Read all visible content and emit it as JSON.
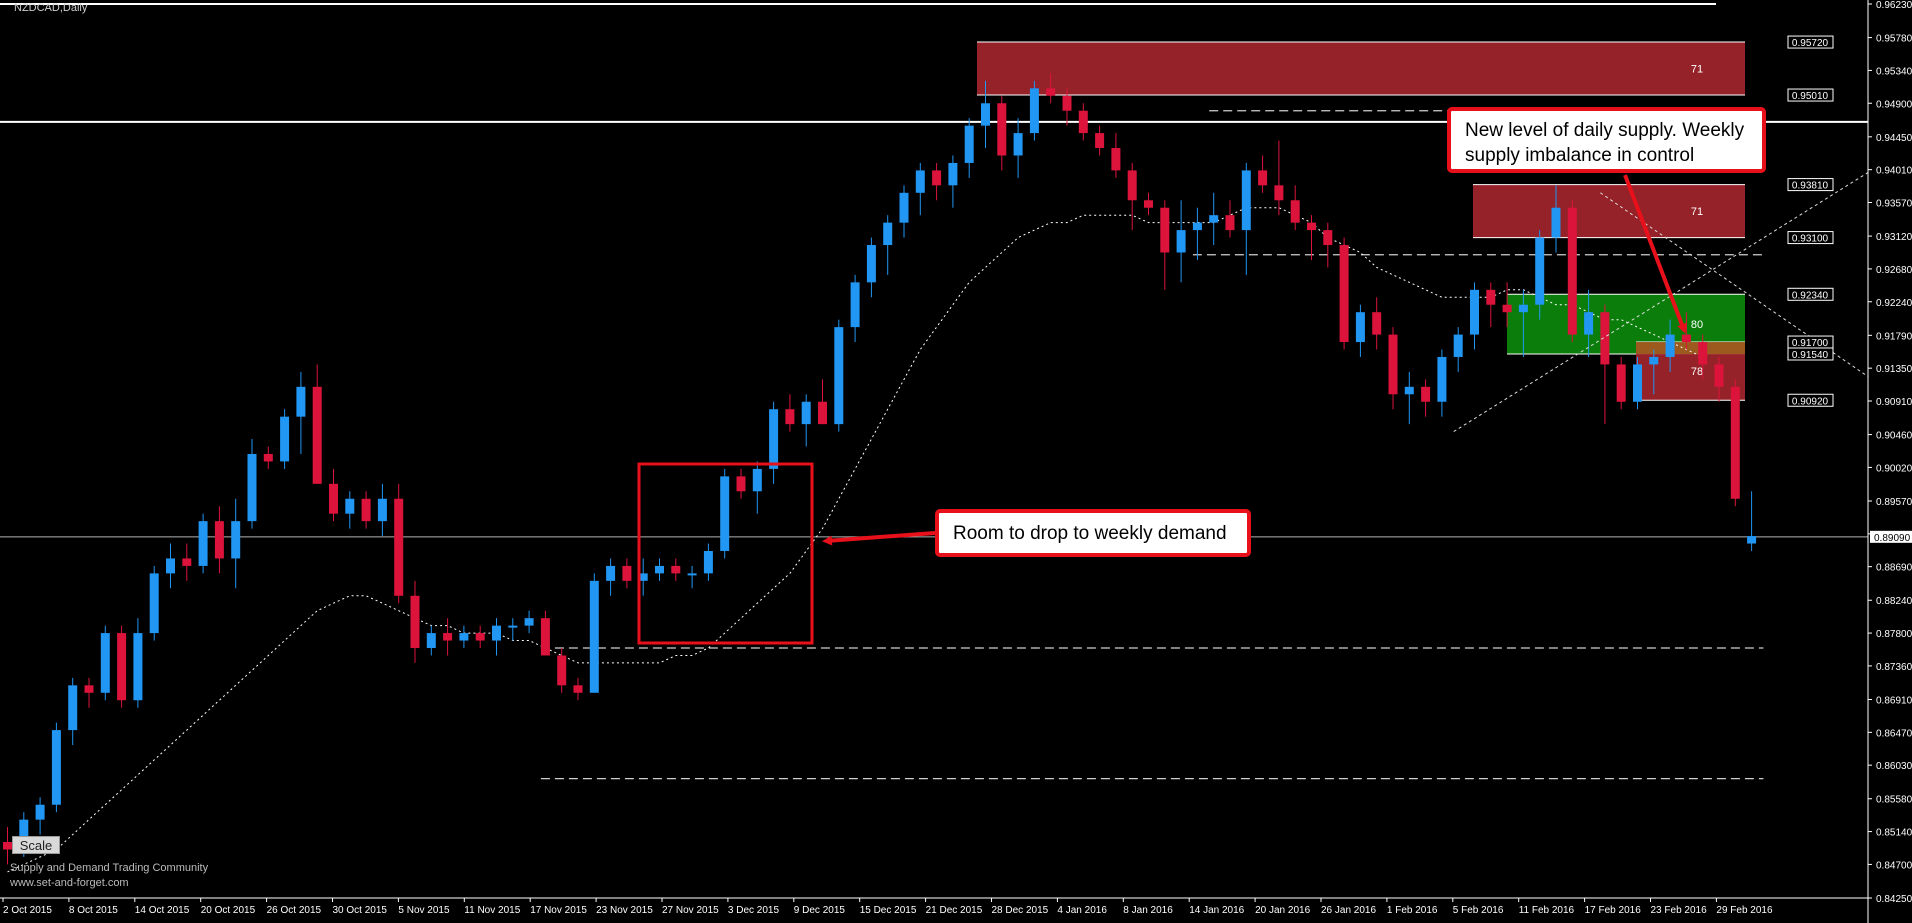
{
  "chart_title": "NZDCAD,Daily",
  "chart_data": {
    "type": "candlestick",
    "symbol": "NZDCAD",
    "timeframe": "Daily",
    "ylim": [
      0.8425,
      0.9623
    ],
    "price_ticks": [
      "0.96230",
      "0.95780",
      "0.95340",
      "0.94900",
      "0.94450",
      "0.94010",
      "0.93570",
      "0.93120",
      "0.92680",
      "0.92240",
      "0.91790",
      "0.91350",
      "0.90910",
      "0.90460",
      "0.90020",
      "0.89570",
      "0.89130",
      "0.88690",
      "0.88240",
      "0.87800",
      "0.87360",
      "0.86910",
      "0.86470",
      "0.86030",
      "0.85580",
      "0.85140",
      "0.84700",
      "0.84250"
    ],
    "date_labels": [
      "2 Oct 2015",
      "8 Oct 2015",
      "14 Oct 2015",
      "20 Oct 2015",
      "26 Oct 2015",
      "30 Oct 2015",
      "5 Nov 2015",
      "11 Nov 2015",
      "17 Nov 2015",
      "23 Nov 2015",
      "27 Nov 2015",
      "3 Dec 2015",
      "9 Dec 2015",
      "15 Dec 2015",
      "21 Dec 2015",
      "28 Dec 2015",
      "4 Jan 2016",
      "8 Jan 2016",
      "14 Jan 2016",
      "20 Jan 2016",
      "26 Jan 2016",
      "1 Feb 2016",
      "5 Feb 2016",
      "11 Feb 2016",
      "17 Feb 2016",
      "23 Feb 2016",
      "29 Feb 2016"
    ],
    "candles": [
      [
        0.85,
        0.852,
        0.847,
        0.849
      ],
      [
        0.849,
        0.854,
        0.848,
        0.853
      ],
      [
        0.853,
        0.856,
        0.851,
        0.855
      ],
      [
        0.855,
        0.866,
        0.854,
        0.865
      ],
      [
        0.865,
        0.872,
        0.863,
        0.871
      ],
      [
        0.871,
        0.872,
        0.868,
        0.87
      ],
      [
        0.87,
        0.879,
        0.869,
        0.878
      ],
      [
        0.878,
        0.879,
        0.868,
        0.869
      ],
      [
        0.869,
        0.88,
        0.868,
        0.878
      ],
      [
        0.878,
        0.887,
        0.877,
        0.886
      ],
      [
        0.886,
        0.89,
        0.884,
        0.888
      ],
      [
        0.888,
        0.89,
        0.885,
        0.887
      ],
      [
        0.887,
        0.894,
        0.886,
        0.893
      ],
      [
        0.893,
        0.895,
        0.886,
        0.888
      ],
      [
        0.888,
        0.896,
        0.884,
        0.893
      ],
      [
        0.893,
        0.904,
        0.892,
        0.902
      ],
      [
        0.902,
        0.903,
        0.9,
        0.901
      ],
      [
        0.901,
        0.908,
        0.9,
        0.907
      ],
      [
        0.907,
        0.913,
        0.902,
        0.911
      ],
      [
        0.911,
        0.914,
        0.898,
        0.898
      ],
      [
        0.898,
        0.9,
        0.893,
        0.894
      ],
      [
        0.894,
        0.897,
        0.892,
        0.896
      ],
      [
        0.896,
        0.897,
        0.892,
        0.893
      ],
      [
        0.893,
        0.898,
        0.891,
        0.896
      ],
      [
        0.896,
        0.898,
        0.882,
        0.883
      ],
      [
        0.883,
        0.885,
        0.874,
        0.876
      ],
      [
        0.876,
        0.879,
        0.875,
        0.878
      ],
      [
        0.878,
        0.88,
        0.875,
        0.877
      ],
      [
        0.877,
        0.879,
        0.876,
        0.878
      ],
      [
        0.878,
        0.879,
        0.876,
        0.877
      ],
      [
        0.877,
        0.88,
        0.875,
        0.879
      ],
      [
        0.879,
        0.88,
        0.877,
        0.879
      ],
      [
        0.879,
        0.881,
        0.878,
        0.88
      ],
      [
        0.88,
        0.881,
        0.875,
        0.875
      ],
      [
        0.875,
        0.876,
        0.87,
        0.871
      ],
      [
        0.871,
        0.872,
        0.869,
        0.87
      ],
      [
        0.87,
        0.886,
        0.87,
        0.885
      ],
      [
        0.885,
        0.888,
        0.883,
        0.887
      ],
      [
        0.887,
        0.888,
        0.884,
        0.885
      ],
      [
        0.885,
        0.888,
        0.883,
        0.886
      ],
      [
        0.886,
        0.888,
        0.885,
        0.887
      ],
      [
        0.887,
        0.888,
        0.885,
        0.886
      ],
      [
        0.886,
        0.887,
        0.884,
        0.886
      ],
      [
        0.886,
        0.89,
        0.885,
        0.889
      ],
      [
        0.889,
        0.9,
        0.888,
        0.899
      ],
      [
        0.899,
        0.9,
        0.896,
        0.897
      ],
      [
        0.897,
        0.901,
        0.894,
        0.9
      ],
      [
        0.9,
        0.909,
        0.898,
        0.908
      ],
      [
        0.908,
        0.91,
        0.905,
        0.906
      ],
      [
        0.906,
        0.91,
        0.903,
        0.909
      ],
      [
        0.909,
        0.912,
        0.906,
        0.906
      ],
      [
        0.906,
        0.92,
        0.905,
        0.919
      ],
      [
        0.919,
        0.926,
        0.917,
        0.925
      ],
      [
        0.925,
        0.931,
        0.923,
        0.93
      ],
      [
        0.93,
        0.934,
        0.926,
        0.933
      ],
      [
        0.933,
        0.938,
        0.931,
        0.937
      ],
      [
        0.937,
        0.941,
        0.934,
        0.94
      ],
      [
        0.94,
        0.941,
        0.936,
        0.938
      ],
      [
        0.938,
        0.942,
        0.935,
        0.941
      ],
      [
        0.941,
        0.947,
        0.939,
        0.946
      ],
      [
        0.946,
        0.952,
        0.943,
        0.949
      ],
      [
        0.949,
        0.95,
        0.94,
        0.942
      ],
      [
        0.942,
        0.947,
        0.939,
        0.945
      ],
      [
        0.945,
        0.952,
        0.944,
        0.951
      ],
      [
        0.951,
        0.953,
        0.949,
        0.95
      ],
      [
        0.95,
        0.951,
        0.946,
        0.948
      ],
      [
        0.948,
        0.949,
        0.944,
        0.945
      ],
      [
        0.945,
        0.946,
        0.942,
        0.943
      ],
      [
        0.943,
        0.945,
        0.939,
        0.94
      ],
      [
        0.94,
        0.941,
        0.932,
        0.936
      ],
      [
        0.936,
        0.937,
        0.934,
        0.935
      ],
      [
        0.935,
        0.936,
        0.924,
        0.929
      ],
      [
        0.929,
        0.936,
        0.925,
        0.932
      ],
      [
        0.932,
        0.935,
        0.928,
        0.933
      ],
      [
        0.933,
        0.937,
        0.93,
        0.934
      ],
      [
        0.934,
        0.936,
        0.931,
        0.932
      ],
      [
        0.932,
        0.941,
        0.926,
        0.94
      ],
      [
        0.94,
        0.942,
        0.937,
        0.938
      ],
      [
        0.938,
        0.944,
        0.934,
        0.936
      ],
      [
        0.936,
        0.938,
        0.932,
        0.933
      ],
      [
        0.933,
        0.934,
        0.928,
        0.932
      ],
      [
        0.932,
        0.933,
        0.927,
        0.93
      ],
      [
        0.93,
        0.931,
        0.916,
        0.917
      ],
      [
        0.917,
        0.922,
        0.915,
        0.921
      ],
      [
        0.921,
        0.923,
        0.916,
        0.918
      ],
      [
        0.918,
        0.919,
        0.908,
        0.91
      ],
      [
        0.91,
        0.913,
        0.906,
        0.911
      ],
      [
        0.911,
        0.912,
        0.907,
        0.909
      ],
      [
        0.909,
        0.916,
        0.907,
        0.915
      ],
      [
        0.915,
        0.919,
        0.913,
        0.918
      ],
      [
        0.918,
        0.925,
        0.916,
        0.924
      ],
      [
        0.924,
        0.925,
        0.919,
        0.922
      ],
      [
        0.922,
        0.925,
        0.919,
        0.921
      ],
      [
        0.921,
        0.924,
        0.915,
        0.922
      ],
      [
        0.922,
        0.932,
        0.92,
        0.931
      ],
      [
        0.931,
        0.938,
        0.929,
        0.935
      ],
      [
        0.935,
        0.936,
        0.917,
        0.918
      ],
      [
        0.918,
        0.924,
        0.915,
        0.921
      ],
      [
        0.921,
        0.922,
        0.906,
        0.914
      ],
      [
        0.914,
        0.915,
        0.908,
        0.909
      ],
      [
        0.909,
        0.915,
        0.908,
        0.914
      ],
      [
        0.914,
        0.916,
        0.91,
        0.915
      ],
      [
        0.915,
        0.92,
        0.913,
        0.918
      ],
      [
        0.918,
        0.921,
        0.916,
        0.917
      ],
      [
        0.917,
        0.918,
        0.912,
        0.914
      ],
      [
        0.914,
        0.915,
        0.909,
        0.911
      ],
      [
        0.911,
        0.912,
        0.895,
        0.896
      ],
      [
        0.89,
        0.897,
        0.889,
        0.891
      ]
    ],
    "moving_average": [
      0.846,
      0.847,
      0.848,
      0.849,
      0.851,
      0.853,
      0.855,
      0.857,
      0.859,
      0.861,
      0.863,
      0.865,
      0.867,
      0.869,
      0.871,
      0.873,
      0.875,
      0.877,
      0.879,
      0.881,
      0.882,
      0.883,
      0.883,
      0.882,
      0.881,
      0.88,
      0.879,
      0.879,
      0.878,
      0.878,
      0.878,
      0.877,
      0.877,
      0.876,
      0.875,
      0.874,
      0.874,
      0.874,
      0.874,
      0.874,
      0.874,
      0.875,
      0.875,
      0.876,
      0.878,
      0.88,
      0.882,
      0.884,
      0.886,
      0.889,
      0.892,
      0.896,
      0.9,
      0.904,
      0.908,
      0.912,
      0.916,
      0.919,
      0.922,
      0.925,
      0.927,
      0.929,
      0.931,
      0.932,
      0.933,
      0.933,
      0.934,
      0.934,
      0.934,
      0.934,
      0.933,
      0.933,
      0.933,
      0.933,
      0.933,
      0.934,
      0.935,
      0.935,
      0.935,
      0.934,
      0.933,
      0.931,
      0.93,
      0.929,
      0.927,
      0.926,
      0.925,
      0.924,
      0.923,
      0.923,
      0.923,
      0.923,
      0.924,
      0.924,
      0.923,
      0.922,
      0.922,
      0.921,
      0.92,
      0.92,
      0.919,
      0.918,
      0.917,
      0.916,
      0.915
    ],
    "horizontal_lines": [
      0.9623,
      0.9465,
      0.8909
    ],
    "dashed_levels": [
      {
        "price": 0.9287,
        "from_index": 73,
        "to_index": 108
      },
      {
        "price": 0.876,
        "from_index": 33,
        "to_index": 108
      },
      {
        "price": 0.8585,
        "from_index": 33,
        "to_index": 108
      },
      {
        "price": 0.948,
        "from_index": 74,
        "to_index": 94
      }
    ],
    "zones": [
      {
        "type": "supply",
        "top": 0.9572,
        "bottom": 0.9501,
        "label": "71",
        "color": "#a4262c"
      },
      {
        "type": "supply",
        "top": 0.9381,
        "bottom": 0.931,
        "label": "71",
        "color": "#a4262c"
      },
      {
        "type": "demand",
        "top": 0.9234,
        "bottom": 0.9154,
        "label": "80",
        "color": "#0b7d0b"
      },
      {
        "type": "supply",
        "top": 0.917,
        "bottom": 0.9092,
        "label": "78",
        "color": "#a4262c"
      }
    ],
    "zone_price_tags": [
      "0.95720",
      "0.95010",
      "0.93810",
      "0.93100",
      "0.92340",
      "0.91700",
      "0.91540",
      "0.90920"
    ],
    "current_price_tag": "0.89090",
    "trendlines": [
      {
        "from": [
          89,
          0.905
        ],
        "to": [
          130,
          0.961
        ]
      },
      {
        "from": [
          98,
          0.937
        ],
        "to": [
          130,
          0.889
        ]
      }
    ],
    "colors": {
      "bull": "#2196f3",
      "bear": "#dc143c",
      "grid": "#ffffff",
      "accent": "#e8101a"
    }
  },
  "annotations": {
    "demand_note": "Room to drop to weekly demand",
    "supply_note": "New level of daily supply. Weekly supply imbalance in control"
  },
  "ui": {
    "scale_button": "Scale",
    "watermark_line1": "Supply and Demand Trading Community",
    "watermark_line2": "www.set-and-forget.com"
  }
}
